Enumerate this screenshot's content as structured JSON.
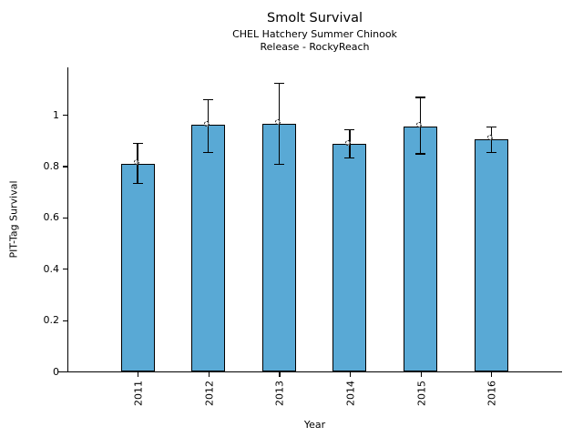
{
  "figure": {
    "title": "Smolt Survival",
    "subtitle_line1": "CHEL Hatchery Summer Chinook",
    "subtitle_line2": "Release - RockyReach"
  },
  "chart_data": {
    "type": "bar",
    "title": "Smolt Survival",
    "subtitle": [
      "CHEL Hatchery Summer Chinook",
      "Release - RockyReach"
    ],
    "xlabel": "Year",
    "ylabel": "PIT-Tag Survival",
    "categories": [
      "2011",
      "2012",
      "2013",
      "2014",
      "2015",
      "2016"
    ],
    "values": [
      0.81,
      0.96,
      0.965,
      0.885,
      0.955,
      0.905
    ],
    "error_low": [
      0.73,
      0.85,
      0.805,
      0.83,
      0.845,
      0.85
    ],
    "error_high": [
      0.89,
      1.06,
      1.125,
      0.945,
      1.07,
      0.955
    ],
    "ylim": [
      0,
      1.18
    ],
    "yticks": [
      0,
      0.2,
      0.4,
      0.6,
      0.8,
      1
    ],
    "ytick_labels": [
      "0",
      "0.2",
      "0.4",
      "0.6",
      "0.8",
      "1"
    ],
    "bar_color": "#59A9D5",
    "bar_edge_color": "#000000",
    "error_color": "#000000",
    "marker": "open-dashed-circle",
    "grid": false,
    "legend": null
  }
}
